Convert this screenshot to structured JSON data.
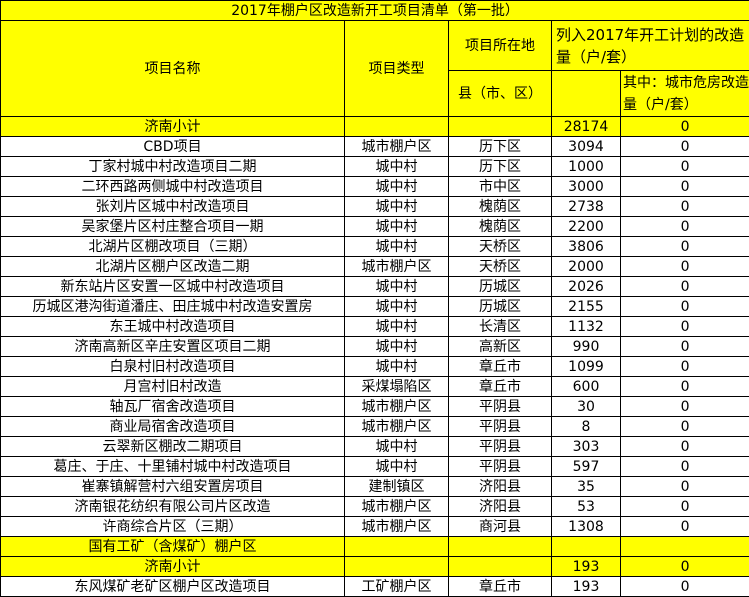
{
  "title": "2017年棚户区改造新开工项目清单（第一批）",
  "headers": {
    "name": "项目名称",
    "type": "项目类型",
    "location": "项目所在地",
    "county": "县（市、区）",
    "planned": "列入2017年开工计划的改造量（户/套）",
    "dangerous": "其中：城市危房改造量（户/套）"
  },
  "subtotal1": {
    "name": "济南小计",
    "planned": "28174",
    "dangerous": "0"
  },
  "rows": [
    {
      "name": "CBD项目",
      "type": "城市棚户区",
      "county": "历下区",
      "planned": "3094",
      "dangerous": "0"
    },
    {
      "name": "丁家村城中村改造项目二期",
      "type": "城中村",
      "county": "历下区",
      "planned": "1000",
      "dangerous": "0"
    },
    {
      "name": "二环西路两侧城中村改造项目",
      "type": "城中村",
      "county": "市中区",
      "planned": "3000",
      "dangerous": "0"
    },
    {
      "name": "张刘片区城中村改造项目",
      "type": "城中村",
      "county": "槐荫区",
      "planned": "2738",
      "dangerous": "0"
    },
    {
      "name": "吴家堡片区村庄整合项目一期",
      "type": "城中村",
      "county": "槐荫区",
      "planned": "2200",
      "dangerous": "0"
    },
    {
      "name": "北湖片区棚改项目（三期）",
      "type": "城中村",
      "county": "天桥区",
      "planned": "3806",
      "dangerous": "0"
    },
    {
      "name": "北湖片区棚户区改造二期",
      "type": "城市棚户区",
      "county": "天桥区",
      "planned": "2000",
      "dangerous": "0"
    },
    {
      "name": "新东站片区安置一区城中村改造项目",
      "type": "城中村",
      "county": "历城区",
      "planned": "2026",
      "dangerous": "0"
    },
    {
      "name": "历城区港沟街道潘庄、田庄城中村改造安置房",
      "type": "城中村",
      "county": "历城区",
      "planned": "2155",
      "dangerous": "0"
    },
    {
      "name": "东王城中村改造项目",
      "type": "城中村",
      "county": "长清区",
      "planned": "1132",
      "dangerous": "0"
    },
    {
      "name": "济南高新区辛庄安置区项目二期",
      "type": "城中村",
      "county": "高新区",
      "planned": "990",
      "dangerous": "0"
    },
    {
      "name": "白泉村旧村改造项目",
      "type": "城中村",
      "county": "章丘市",
      "planned": "1099",
      "dangerous": "0"
    },
    {
      "name": "月宫村旧村改造",
      "type": "采煤塌陷区",
      "county": "章丘市",
      "planned": "600",
      "dangerous": "0"
    },
    {
      "name": "轴瓦厂宿舍改造项目",
      "type": "城市棚户区",
      "county": "平阴县",
      "planned": "30",
      "dangerous": "0"
    },
    {
      "name": "商业局宿舍改造项目",
      "type": "城市棚户区",
      "county": "平阴县",
      "planned": "8",
      "dangerous": "0"
    },
    {
      "name": "云翠新区棚改二期项目",
      "type": "城中村",
      "county": "平阴县",
      "planned": "303",
      "dangerous": "0"
    },
    {
      "name": "葛庄、于庄、十里铺村城中村改造项目",
      "type": "城中村",
      "county": "平阴县",
      "planned": "597",
      "dangerous": "0"
    },
    {
      "name": "崔寨镇解营村六组安置房项目",
      "type": "建制镇区",
      "county": "济阳县",
      "planned": "35",
      "dangerous": "0"
    },
    {
      "name": "济南银花纺织有限公司片区改造",
      "type": "城市棚户区",
      "county": "济阳县",
      "planned": "53",
      "dangerous": "0"
    },
    {
      "name": "许商综合片区（三期）",
      "type": "城市棚户区",
      "county": "商河县",
      "planned": "1308",
      "dangerous": "0"
    }
  ],
  "section2": {
    "name": "国有工矿（含煤矿）棚户区"
  },
  "subtotal2": {
    "name": "济南小计",
    "planned": "193",
    "dangerous": "0"
  },
  "rows2": [
    {
      "name": "东风煤矿老矿区棚户区改造项目",
      "type": "工矿棚户区",
      "county": "章丘市",
      "planned": "193",
      "dangerous": "0"
    }
  ],
  "colors": {
    "highlight": "#ffff00",
    "border": "#000000"
  }
}
